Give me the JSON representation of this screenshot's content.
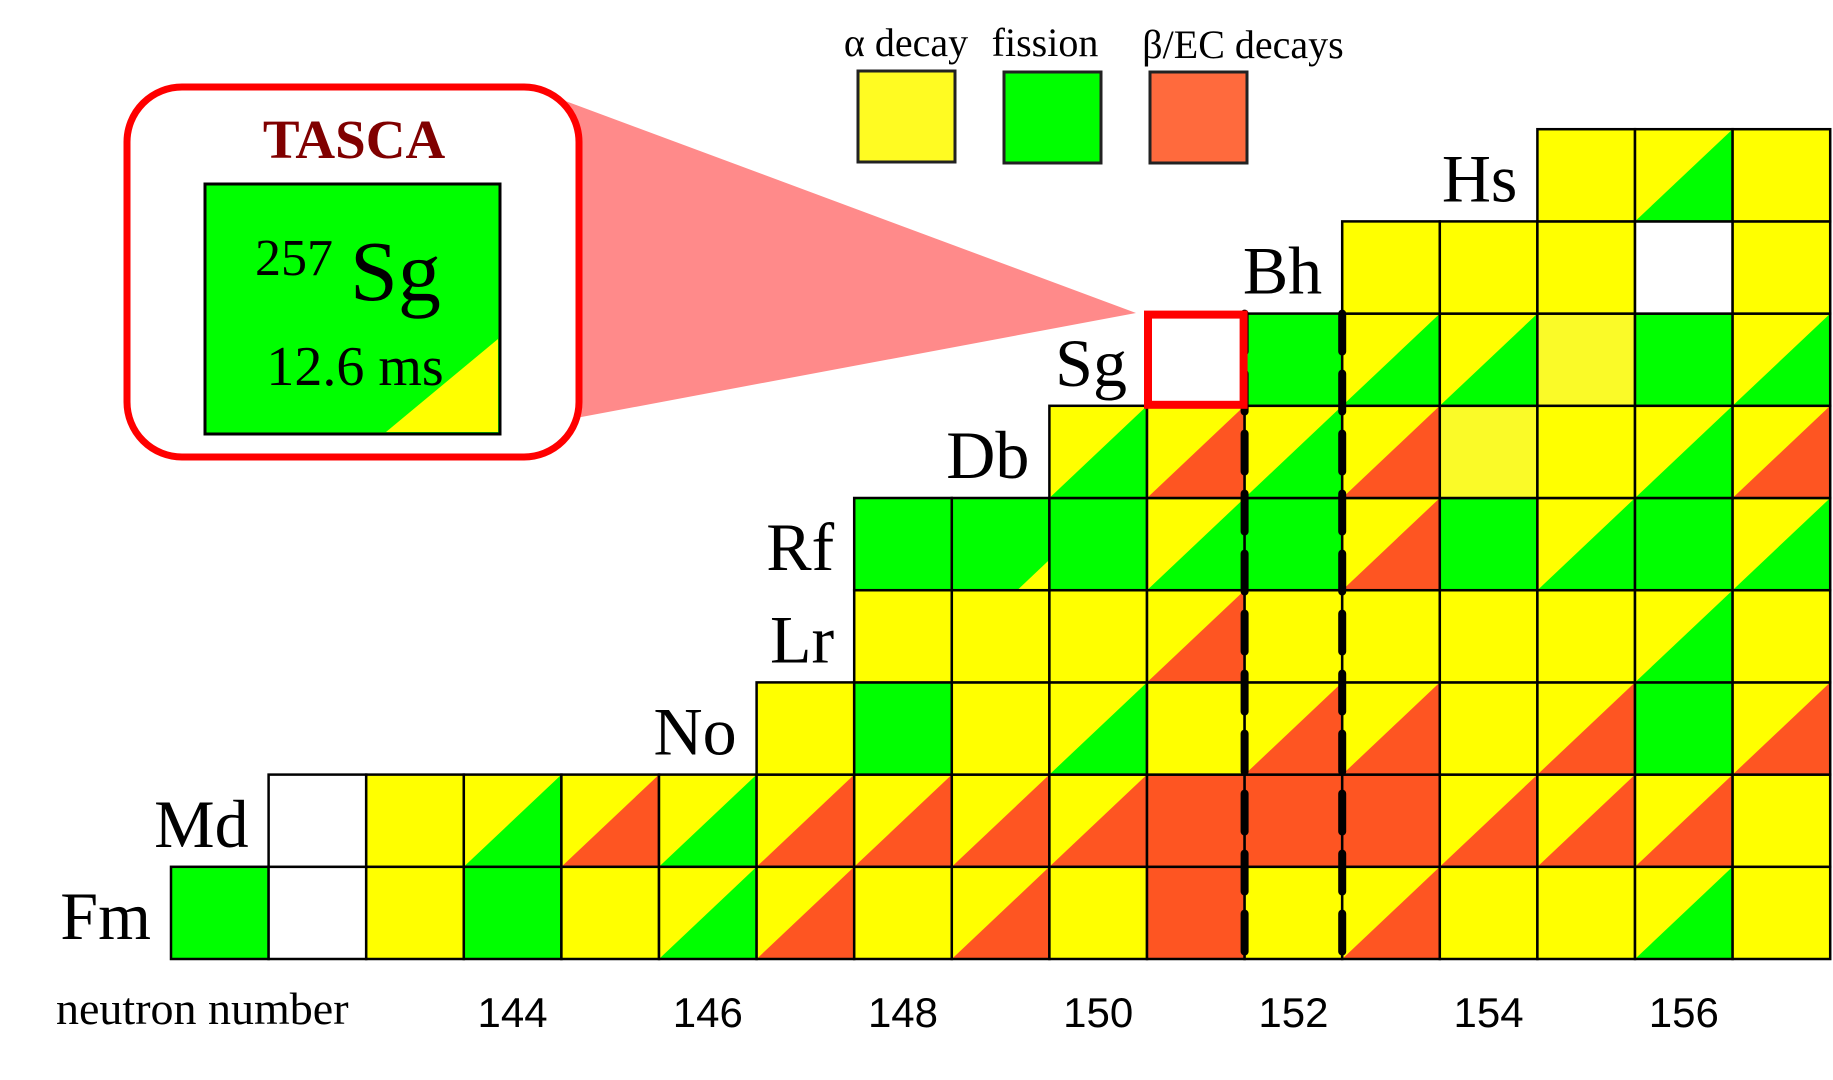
{
  "legend": {
    "items": [
      {
        "label": "α decay",
        "color": "#fffb22"
      },
      {
        "label": "fission",
        "color": "#00ff00"
      },
      {
        "label": "β/EC decays",
        "color": "#ff6a3d"
      }
    ]
  },
  "inset": {
    "title": "TASCA",
    "mass_number": "257",
    "symbol": "Sg",
    "half_life": "12.6 ms",
    "main_mode": "fission",
    "minor_mode": "alpha"
  },
  "colors": {
    "alpha": "#ffff00",
    "alpha_light": "#fafa28",
    "fission": "#00ff00",
    "beta": "#fe5522",
    "unknown": "#ffffff",
    "highlight": "#ff0000",
    "wedge": "#ff8a8a",
    "title": "#800000"
  },
  "axis": {
    "label": "neutron number",
    "ticks": [
      "144",
      "146",
      "148",
      "150",
      "152",
      "154",
      "156"
    ],
    "tick_values": [
      144,
      146,
      148,
      150,
      152,
      154,
      156
    ]
  },
  "chart_data": {
    "type": "table",
    "columns_neutron_number": [
      141,
      157
    ],
    "shell_gaps_dashed_at_N": [
      152
    ],
    "highlighted": {
      "element": "Sg",
      "N": 151
    },
    "rows": [
      {
        "element": "Fm",
        "start_N": 141,
        "cells": [
          "fission",
          "unknown",
          "alpha",
          "fission",
          "alpha",
          "alpha/fission",
          "alpha/beta",
          "alpha",
          "alpha/beta",
          "alpha",
          "beta",
          "alpha",
          "alpha/beta",
          "alpha",
          "alpha",
          "alpha/fission",
          "alpha"
        ]
      },
      {
        "element": "Md",
        "start_N": 142,
        "cells": [
          "unknown",
          "alpha",
          "alpha/fission",
          "alpha/beta",
          "alpha/fission",
          "alpha/beta",
          "alpha/beta",
          "alpha/beta",
          "alpha/beta",
          "beta",
          "beta",
          "beta",
          "alpha/beta",
          "alpha/beta",
          "alpha/beta",
          "alpha"
        ]
      },
      {
        "element": "No",
        "start_N": 147,
        "cells": [
          "alpha",
          "fission",
          "alpha",
          "alpha/fission",
          "alpha",
          "alpha/beta",
          "alpha/beta",
          "alpha",
          "alpha/beta",
          "fission",
          "alpha/beta"
        ]
      },
      {
        "element": "Lr",
        "start_N": 148,
        "cells": [
          "alpha",
          "alpha",
          "alpha",
          "alpha/beta",
          "alpha",
          "alpha",
          "alpha",
          "alpha",
          "alpha/fission",
          "alpha"
        ]
      },
      {
        "element": "Rf",
        "start_N": 148,
        "cells": [
          "fission",
          "fission/alpha",
          "fission",
          "alpha/fission",
          "fission",
          "alpha/beta",
          "fission",
          "alpha/fission",
          "fission",
          "alpha/fission"
        ]
      },
      {
        "element": "Db",
        "start_N": 150,
        "cells": [
          "alpha/fission",
          "alpha/beta",
          "alpha/fission",
          "alpha/beta",
          "alpha-light",
          "alpha",
          "alpha/fission",
          "alpha/beta"
        ]
      },
      {
        "element": "Sg",
        "start_N": 151,
        "cells": [
          "unknown",
          "fission",
          "alpha/fission",
          "alpha/fission",
          "alpha-light",
          "fission",
          "alpha/fission"
        ]
      },
      {
        "element": "Bh",
        "start_N": 153,
        "cells": [
          "alpha",
          "alpha",
          "alpha",
          "unknown",
          "alpha"
        ]
      },
      {
        "element": "Hs",
        "start_N": 155,
        "cells": [
          "alpha",
          "alpha/fission",
          "alpha"
        ]
      }
    ]
  }
}
